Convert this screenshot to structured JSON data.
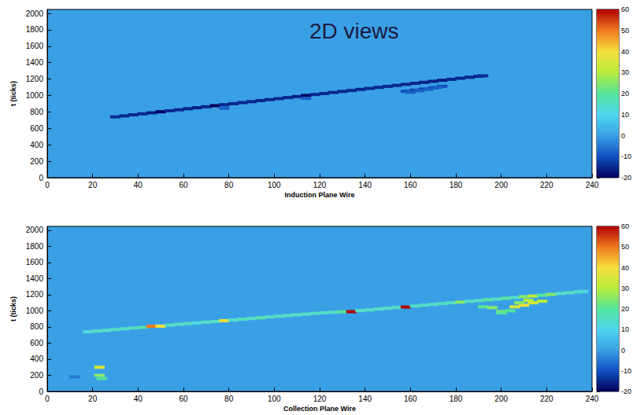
{
  "chart_data": [
    {
      "type": "heatmap",
      "title": "2D views",
      "xlabel": "Induction Plane Wire",
      "ylabel": "t (ticks)",
      "xlim": [
        0,
        240
      ],
      "xticks": [
        0,
        20,
        40,
        60,
        80,
        100,
        120,
        140,
        160,
        180,
        200,
        220,
        240
      ],
      "ylim": [
        0,
        2048
      ],
      "yticks": [
        0,
        200,
        400,
        600,
        800,
        1000,
        1200,
        1400,
        1600,
        1800,
        2000
      ],
      "colorbar": {
        "range": [
          -20,
          60
        ],
        "ticks": [
          -20,
          -10,
          0,
          10,
          20,
          30,
          40,
          50,
          60
        ]
      },
      "cells": [
        [
          30,
          740,
          -14
        ],
        [
          34,
          752,
          -15
        ],
        [
          38,
          765,
          -15
        ],
        [
          42,
          777,
          -15
        ],
        [
          46,
          789,
          -16
        ],
        [
          50,
          802,
          -20
        ],
        [
          54,
          814,
          -15
        ],
        [
          58,
          826,
          -15
        ],
        [
          62,
          839,
          -15
        ],
        [
          66,
          851,
          -16
        ],
        [
          70,
          863,
          -15
        ],
        [
          74,
          876,
          -20
        ],
        [
          78,
          888,
          -15
        ],
        [
          82,
          900,
          -15
        ],
        [
          86,
          913,
          -15
        ],
        [
          90,
          925,
          -15
        ],
        [
          94,
          938,
          -15
        ],
        [
          98,
          950,
          -15
        ],
        [
          102,
          962,
          -15
        ],
        [
          106,
          975,
          -15
        ],
        [
          110,
          987,
          -16
        ],
        [
          114,
          1000,
          -20
        ],
        [
          118,
          1012,
          -15
        ],
        [
          122,
          1024,
          -15
        ],
        [
          126,
          1037,
          -15
        ],
        [
          130,
          1049,
          -15
        ],
        [
          134,
          1061,
          -15
        ],
        [
          138,
          1074,
          -15
        ],
        [
          142,
          1086,
          -15
        ],
        [
          146,
          1099,
          -15
        ],
        [
          150,
          1111,
          -15
        ],
        [
          154,
          1123,
          -15
        ],
        [
          158,
          1136,
          -15
        ],
        [
          162,
          1148,
          -15
        ],
        [
          166,
          1160,
          -16
        ],
        [
          170,
          1173,
          -16
        ],
        [
          174,
          1185,
          -16
        ],
        [
          178,
          1197,
          -15
        ],
        [
          182,
          1210,
          -15
        ],
        [
          186,
          1222,
          -15
        ],
        [
          190,
          1234,
          -15
        ],
        [
          192,
          1240,
          -14
        ],
        [
          158,
          1052,
          -10
        ],
        [
          162,
          1064,
          -12
        ],
        [
          166,
          1078,
          -12
        ],
        [
          170,
          1094,
          -10
        ],
        [
          174,
          1112,
          -10
        ],
        [
          160,
          1040,
          -8
        ],
        [
          164,
          1058,
          -8
        ],
        [
          168,
          1076,
          -8
        ],
        [
          172,
          1100,
          -8
        ],
        [
          114,
          965,
          -8
        ],
        [
          78,
          845,
          -8
        ]
      ]
    },
    {
      "type": "heatmap",
      "xlabel": "Collection Plane Wire",
      "ylabel": "t (ticks)",
      "xlim": [
        0,
        240
      ],
      "xticks": [
        0,
        20,
        40,
        60,
        80,
        100,
        120,
        140,
        160,
        180,
        200,
        220,
        240
      ],
      "ylim": [
        0,
        2048
      ],
      "yticks": [
        0,
        200,
        400,
        600,
        800,
        1000,
        1200,
        1400,
        1600,
        1800,
        2000
      ],
      "colorbar": {
        "range": [
          -20,
          60
        ],
        "ticks": [
          -20,
          -10,
          0,
          10,
          20,
          30,
          40,
          50,
          60
        ]
      },
      "cells": [
        [
          18,
          740,
          12
        ],
        [
          22,
          749,
          15
        ],
        [
          26,
          758,
          15
        ],
        [
          30,
          768,
          15
        ],
        [
          34,
          777,
          15
        ],
        [
          38,
          787,
          15
        ],
        [
          42,
          795,
          18
        ],
        [
          46,
          808,
          50
        ],
        [
          50,
          810,
          40
        ],
        [
          54,
          823,
          15
        ],
        [
          58,
          833,
          15
        ],
        [
          62,
          842,
          15
        ],
        [
          66,
          851,
          12
        ],
        [
          70,
          859,
          15
        ],
        [
          74,
          868,
          15
        ],
        [
          78,
          878,
          40
        ],
        [
          82,
          887,
          15
        ],
        [
          86,
          896,
          15
        ],
        [
          90,
          905,
          15
        ],
        [
          94,
          914,
          18
        ],
        [
          98,
          924,
          15
        ],
        [
          102,
          933,
          15
        ],
        [
          106,
          942,
          15
        ],
        [
          110,
          951,
          15
        ],
        [
          114,
          960,
          15
        ],
        [
          118,
          969,
          15
        ],
        [
          122,
          976,
          15
        ],
        [
          126,
          982,
          15
        ],
        [
          130,
          988,
          20
        ],
        [
          134,
          990,
          60
        ],
        [
          138,
          1003,
          15
        ],
        [
          142,
          1012,
          15
        ],
        [
          146,
          1022,
          15
        ],
        [
          150,
          1032,
          15
        ],
        [
          154,
          1042,
          15
        ],
        [
          158,
          1047,
          60
        ],
        [
          162,
          1060,
          15
        ],
        [
          166,
          1070,
          15
        ],
        [
          170,
          1080,
          15
        ],
        [
          174,
          1090,
          15
        ],
        [
          178,
          1100,
          15
        ],
        [
          182,
          1108,
          25
        ],
        [
          186,
          1118,
          15
        ],
        [
          190,
          1128,
          15
        ],
        [
          194,
          1138,
          20
        ],
        [
          198,
          1146,
          15
        ],
        [
          202,
          1156,
          20
        ],
        [
          206,
          1165,
          15
        ],
        [
          210,
          1175,
          25
        ],
        [
          214,
          1184,
          30
        ],
        [
          218,
          1194,
          20
        ],
        [
          222,
          1204,
          25
        ],
        [
          226,
          1214,
          15
        ],
        [
          230,
          1224,
          15
        ],
        [
          234,
          1236,
          15
        ],
        [
          236,
          1242,
          12
        ],
        [
          192,
          1050,
          20
        ],
        [
          196,
          1040,
          25
        ],
        [
          200,
          990,
          25
        ],
        [
          200,
          975,
          20
        ],
        [
          204,
          1000,
          20
        ],
        [
          206,
          1050,
          35
        ],
        [
          210,
          1070,
          40
        ],
        [
          214,
          1100,
          35
        ],
        [
          218,
          1120,
          30
        ],
        [
          208,
          1100,
          25
        ],
        [
          212,
          1130,
          30
        ],
        [
          23,
          300,
          35
        ],
        [
          23,
          200,
          25
        ],
        [
          24,
          160,
          20
        ],
        [
          12,
          180,
          -5
        ]
      ]
    }
  ]
}
